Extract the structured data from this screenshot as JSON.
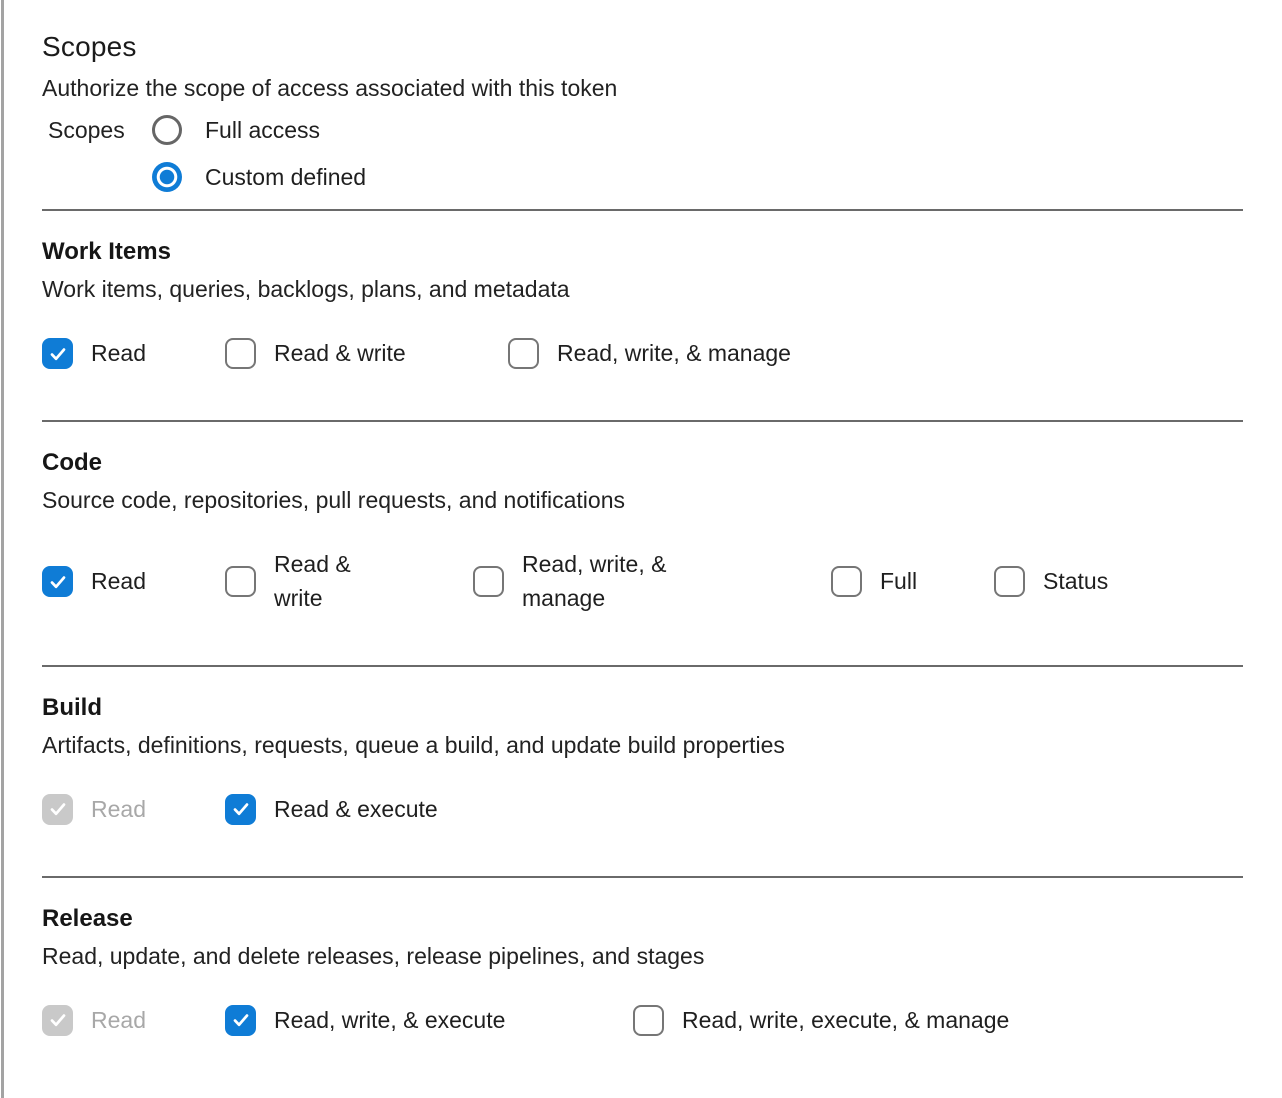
{
  "header": {
    "title": "Scopes",
    "subtitle": "Authorize the scope of access associated with this token",
    "group_label": "Scopes",
    "radios": [
      {
        "label": "Full access",
        "selected": false
      },
      {
        "label": "Custom defined",
        "selected": true
      }
    ]
  },
  "sections": [
    {
      "title": "Work Items",
      "description": "Work items, queries, backlogs, plans, and metadata",
      "options": [
        {
          "label": "Read",
          "state": "checked"
        },
        {
          "label": "Read & write",
          "state": "unchecked"
        },
        {
          "label": "Read, write, & manage",
          "state": "unchecked"
        }
      ]
    },
    {
      "title": "Code",
      "description": "Source code, repositories, pull requests, and notifications",
      "options": [
        {
          "label": "Read",
          "state": "checked"
        },
        {
          "label": "Read & write",
          "state": "unchecked"
        },
        {
          "label": "Read, write, & manage",
          "state": "unchecked"
        },
        {
          "label": "Full",
          "state": "unchecked"
        },
        {
          "label": "Status",
          "state": "unchecked"
        }
      ]
    },
    {
      "title": "Build",
      "description": "Artifacts, definitions, requests, queue a build, and update build properties",
      "options": [
        {
          "label": "Read",
          "state": "checked_disabled"
        },
        {
          "label": "Read & execute",
          "state": "checked"
        }
      ]
    },
    {
      "title": "Release",
      "description": "Read, update, and delete releases, release pipelines, and stages",
      "options": [
        {
          "label": "Read",
          "state": "checked_disabled"
        },
        {
          "label": "Read, write, & execute",
          "state": "checked"
        },
        {
          "label": "Read, write, execute, & manage",
          "state": "unchecked"
        }
      ]
    }
  ],
  "colors": {
    "accent_blue": "#0f7cd6",
    "disabled_gray": "#c9c9c9",
    "divider_gray": "#6a6a6a"
  }
}
